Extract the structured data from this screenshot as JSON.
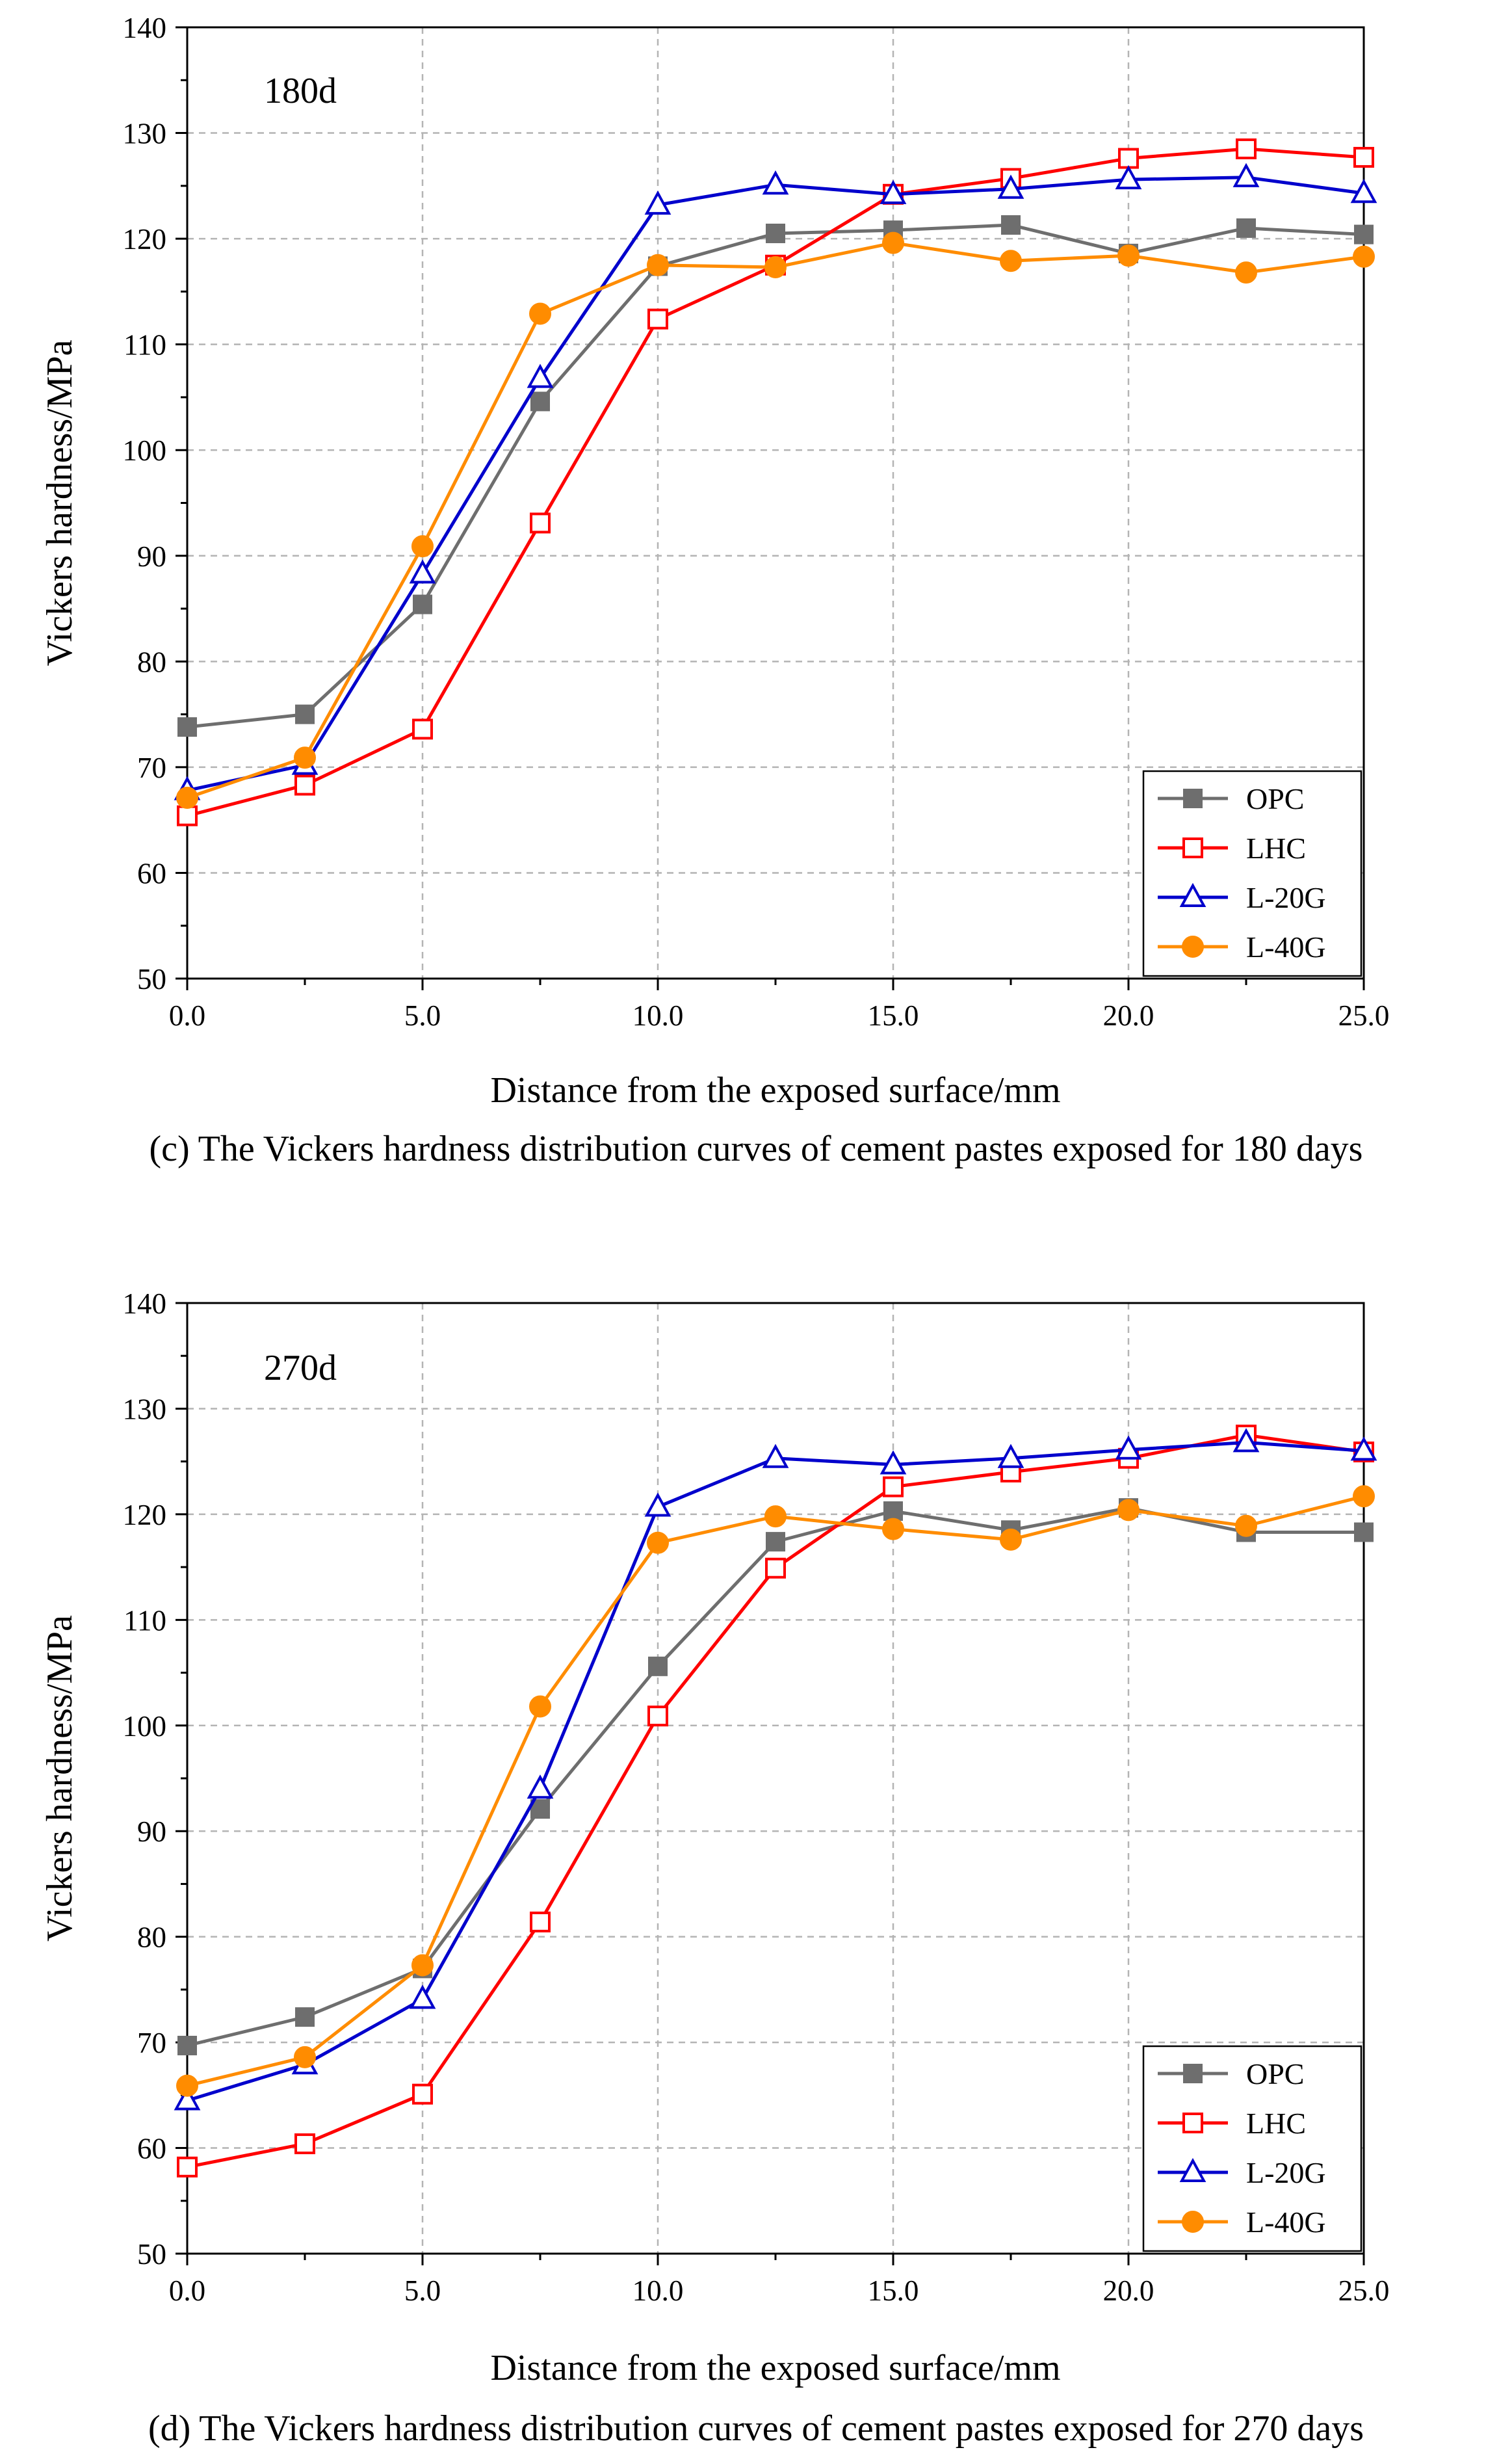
{
  "chart_data": [
    {
      "type": "line",
      "panel_label": "180d",
      "caption": "(c) The Vickers hardness distribution curves of cement pastes exposed for 180 days",
      "xlabel": "Distance from the exposed surface/mm",
      "ylabel": "Vickers hardness/MPa",
      "xlim": [
        0,
        25
      ],
      "ylim": [
        50,
        140
      ],
      "xticks": [
        "0.0",
        "5.0",
        "10.0",
        "15.0",
        "20.0",
        "25.0"
      ],
      "yticks": [
        "50",
        "60",
        "70",
        "80",
        "90",
        "100",
        "110",
        "120",
        "130",
        "140"
      ],
      "grid": true,
      "legend_position": "bottom-right",
      "x": [
        0,
        2.5,
        5,
        7.5,
        10,
        12.5,
        15,
        17.5,
        20,
        22.5,
        25
      ],
      "series": [
        {
          "name": "OPC",
          "color": "#6e6e6e",
          "marker": "square-filled",
          "values": [
            73.8,
            75.0,
            85.4,
            104.6,
            117.4,
            120.5,
            120.8,
            121.3,
            118.6,
            121.0,
            120.4
          ]
        },
        {
          "name": "LHC",
          "color": "#ff0000",
          "marker": "square-open",
          "values": [
            65.4,
            68.3,
            73.6,
            93.1,
            112.4,
            117.5,
            124.2,
            125.7,
            127.6,
            128.5,
            127.7
          ]
        },
        {
          "name": "L-20G",
          "color": "#0000cc",
          "marker": "triangle-open",
          "values": [
            67.8,
            70.2,
            88.3,
            106.8,
            123.2,
            125.1,
            124.2,
            124.7,
            125.6,
            125.8,
            124.3
          ]
        },
        {
          "name": "L-40G",
          "color": "#ff8c00",
          "marker": "circle-filled",
          "values": [
            67.1,
            70.9,
            90.9,
            112.9,
            117.5,
            117.3,
            119.6,
            117.9,
            118.4,
            116.8,
            118.3
          ]
        }
      ]
    },
    {
      "type": "line",
      "panel_label": "270d",
      "caption": "(d) The Vickers hardness distribution curves of cement pastes exposed for 270 days",
      "xlabel": "Distance from the exposed surface/mm",
      "ylabel": "Vickers hardness/MPa",
      "xlim": [
        0,
        25
      ],
      "ylim": [
        50,
        140
      ],
      "xticks": [
        "0.0",
        "5.0",
        "10.0",
        "15.0",
        "20.0",
        "25.0"
      ],
      "yticks": [
        "50",
        "60",
        "70",
        "80",
        "90",
        "100",
        "110",
        "120",
        "130",
        "140"
      ],
      "grid": true,
      "legend_position": "bottom-right",
      "x": [
        0,
        2.5,
        5,
        7.5,
        10,
        12.5,
        15,
        17.5,
        20,
        22.5,
        25
      ],
      "series": [
        {
          "name": "OPC",
          "color": "#6e6e6e",
          "marker": "square-filled",
          "values": [
            69.7,
            72.4,
            77.0,
            92.1,
            105.6,
            117.4,
            120.3,
            118.5,
            120.6,
            118.3,
            118.3
          ]
        },
        {
          "name": "LHC",
          "color": "#ff0000",
          "marker": "square-open",
          "values": [
            58.2,
            60.4,
            65.1,
            81.4,
            100.9,
            114.9,
            122.6,
            124.0,
            125.3,
            127.5,
            125.9
          ]
        },
        {
          "name": "L-20G",
          "color": "#0000cc",
          "marker": "triangle-open",
          "values": [
            64.5,
            67.9,
            74.1,
            94.0,
            120.7,
            125.3,
            124.7,
            125.3,
            126.1,
            126.8,
            126.0
          ]
        },
        {
          "name": "L-40G",
          "color": "#ff8c00",
          "marker": "circle-filled",
          "values": [
            65.9,
            68.6,
            77.3,
            101.8,
            117.3,
            119.8,
            118.6,
            117.6,
            120.4,
            118.9,
            121.7
          ]
        }
      ]
    }
  ]
}
